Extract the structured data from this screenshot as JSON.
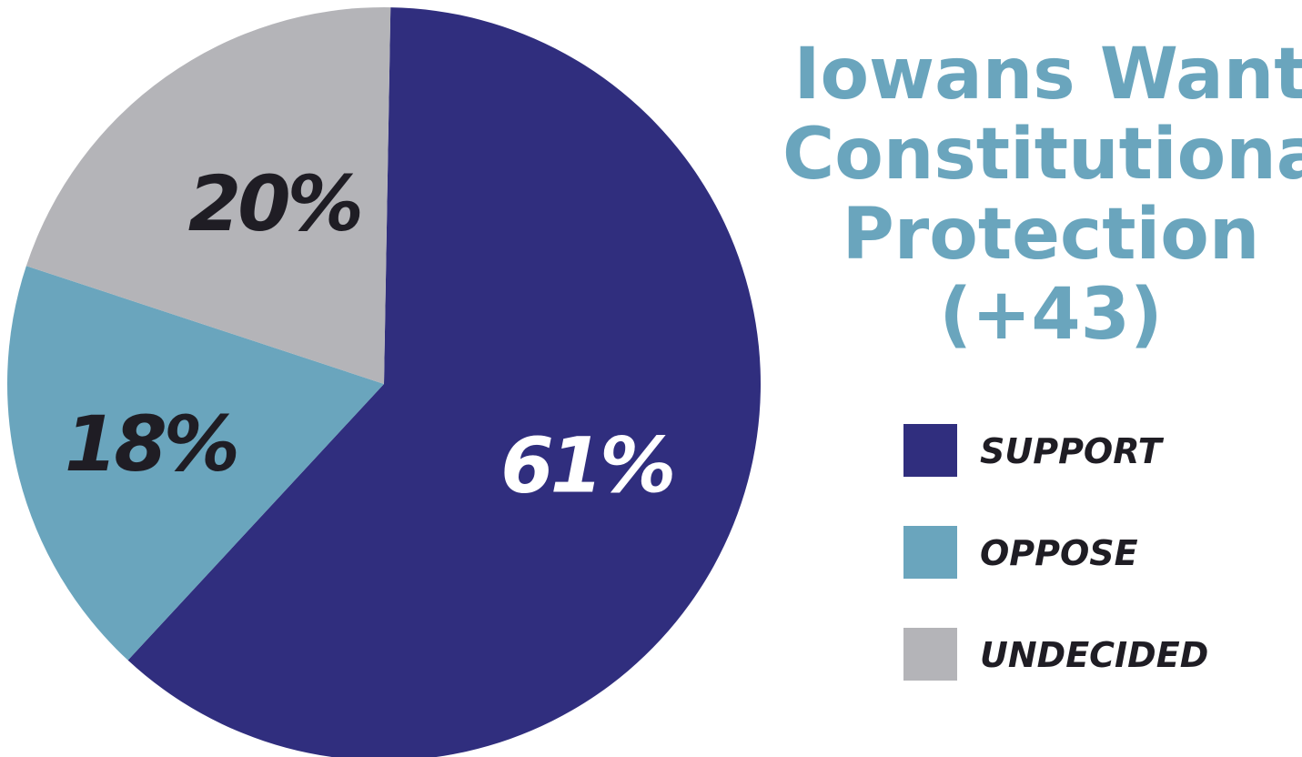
{
  "title": {
    "lines": [
      "Iowans Want",
      "Constitutional",
      "Protection",
      "(+43)"
    ],
    "color": "#6aa5bd"
  },
  "chart_data": {
    "type": "pie",
    "start_angle_deg": 1,
    "direction": "clockwise",
    "slices": [
      {
        "name": "SUPPORT",
        "value": 61,
        "label": "61%",
        "color": "#302e7e",
        "label_color": "#ffffff"
      },
      {
        "name": "OPPOSE",
        "value": 18,
        "label": "18%",
        "color": "#6aa5bd",
        "label_color": "#1f1d24"
      },
      {
        "name": "UNDECIDED",
        "value": 20,
        "label": "20%",
        "color": "#b4b4b8",
        "label_color": "#1f1d24"
      }
    ],
    "legend_position": "right"
  },
  "legend": {
    "items": [
      {
        "label": "SUPPORT",
        "color": "#302e7e"
      },
      {
        "label": "OPPOSE",
        "color": "#6aa5bd"
      },
      {
        "label": "UNDECIDED",
        "color": "#b4b4b8"
      }
    ]
  }
}
